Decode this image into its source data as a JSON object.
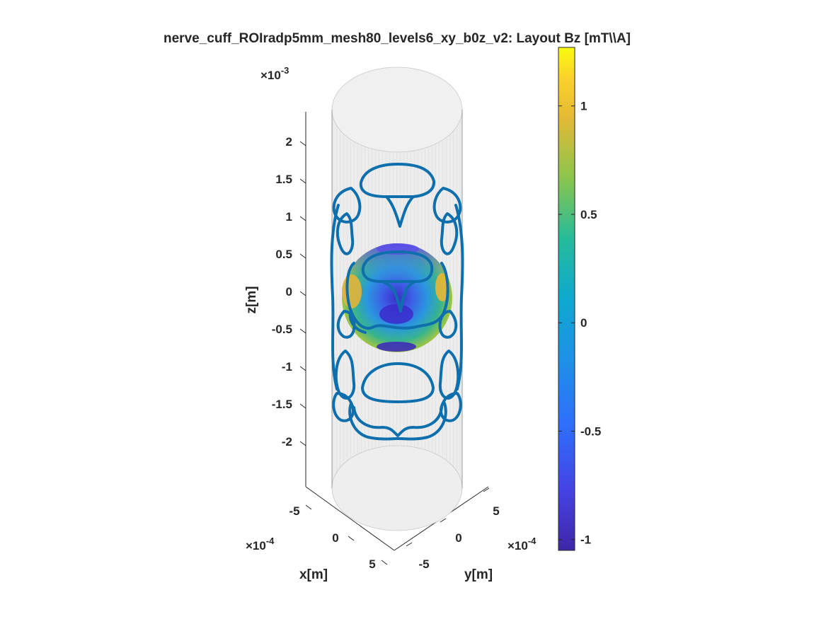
{
  "chart_data": {
    "type": "3d-surface-with-contours",
    "title": "nerve_cuff_ROIradp5mm_mesh80_levels6_xy_b0z_v2: Layout Bz [mT\\\\A]",
    "axes": {
      "x": {
        "label": "x[m]",
        "ticks": [
          "-5",
          "0",
          "5"
        ],
        "tick_values": [
          -5,
          0,
          5
        ],
        "multiplier": "×10",
        "exponent": "-4",
        "range": [
          -6.5,
          6.5
        ]
      },
      "y": {
        "label": "y[m]",
        "ticks": [
          "-5",
          "0",
          "5"
        ],
        "tick_values": [
          -5,
          0,
          5
        ],
        "multiplier": "×10",
        "exponent": "-4",
        "range": [
          -6.5,
          6.5
        ]
      },
      "z": {
        "label": "z[m]",
        "ticks": [
          "2",
          "1.5",
          "1",
          "0.5",
          "0",
          "-0.5",
          "-1",
          "-1.5",
          "-2"
        ],
        "tick_values": [
          2,
          1.5,
          1,
          0.5,
          0,
          -0.5,
          -1,
          -1.5,
          -2
        ],
        "multiplier": "×10",
        "exponent": "-3",
        "range": [
          -2.5,
          2.5
        ]
      }
    },
    "colorbar": {
      "colormap": "parula",
      "ticks": [
        "1",
        "0.5",
        "0",
        "-0.5",
        "-1"
      ],
      "tick_values": [
        1,
        0.5,
        0,
        -0.5,
        -1
      ],
      "range": [
        -1.05,
        1.27
      ]
    },
    "series": [
      {
        "name": "",
        "kind": "cylinder surface (transparent gray)",
        "color": "#d9d9d9"
      },
      {
        "name": "",
        "kind": "coil wire contours",
        "color": "#0f6fad"
      },
      {
        "name": "",
        "kind": "ROI sphere Bz field",
        "radius_mm": 0.5
      }
    ],
    "colors": {
      "contour": "#0f6fad",
      "cylinder": "#d4d4d4",
      "text": "#262626"
    }
  }
}
